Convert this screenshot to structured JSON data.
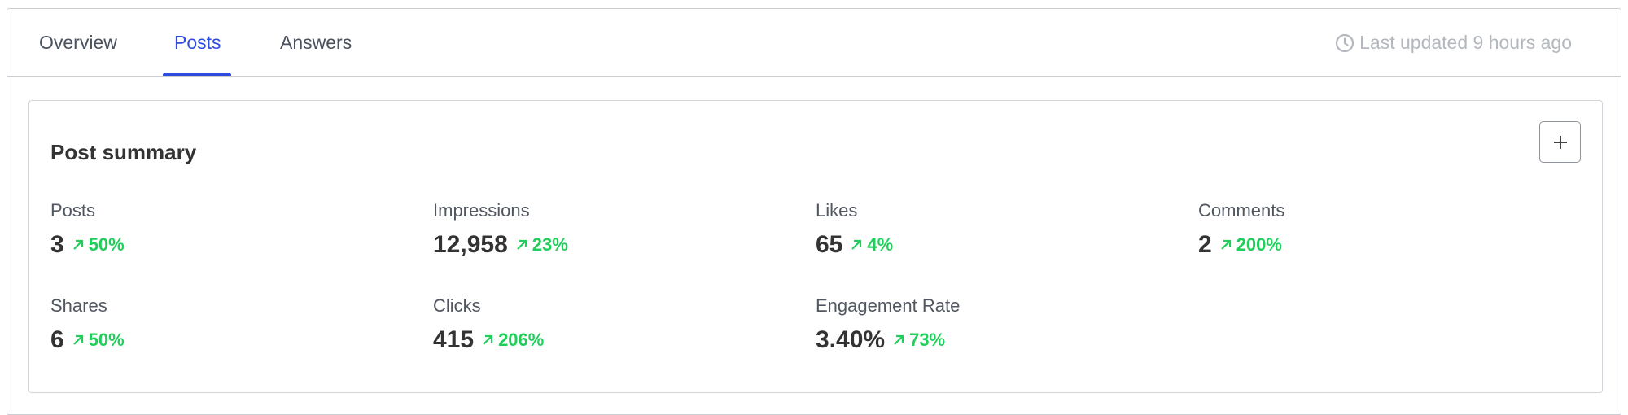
{
  "tabs": [
    "Overview",
    "Posts",
    "Answers"
  ],
  "last_updated": "Last updated 9 hours ago",
  "card": {
    "title": "Post summary",
    "metrics": [
      {
        "label": "Posts",
        "value": "3",
        "change": "50%"
      },
      {
        "label": "Impressions",
        "value": "12,958",
        "change": "23%"
      },
      {
        "label": "Likes",
        "value": "65",
        "change": "4%"
      },
      {
        "label": "Comments",
        "value": "2",
        "change": "200%"
      },
      {
        "label": "Shares",
        "value": "6",
        "change": "50%"
      },
      {
        "label": "Clicks",
        "value": "415",
        "change": "206%"
      },
      {
        "label": "Engagement Rate",
        "value": "3.40%",
        "change": "73%"
      }
    ]
  }
}
